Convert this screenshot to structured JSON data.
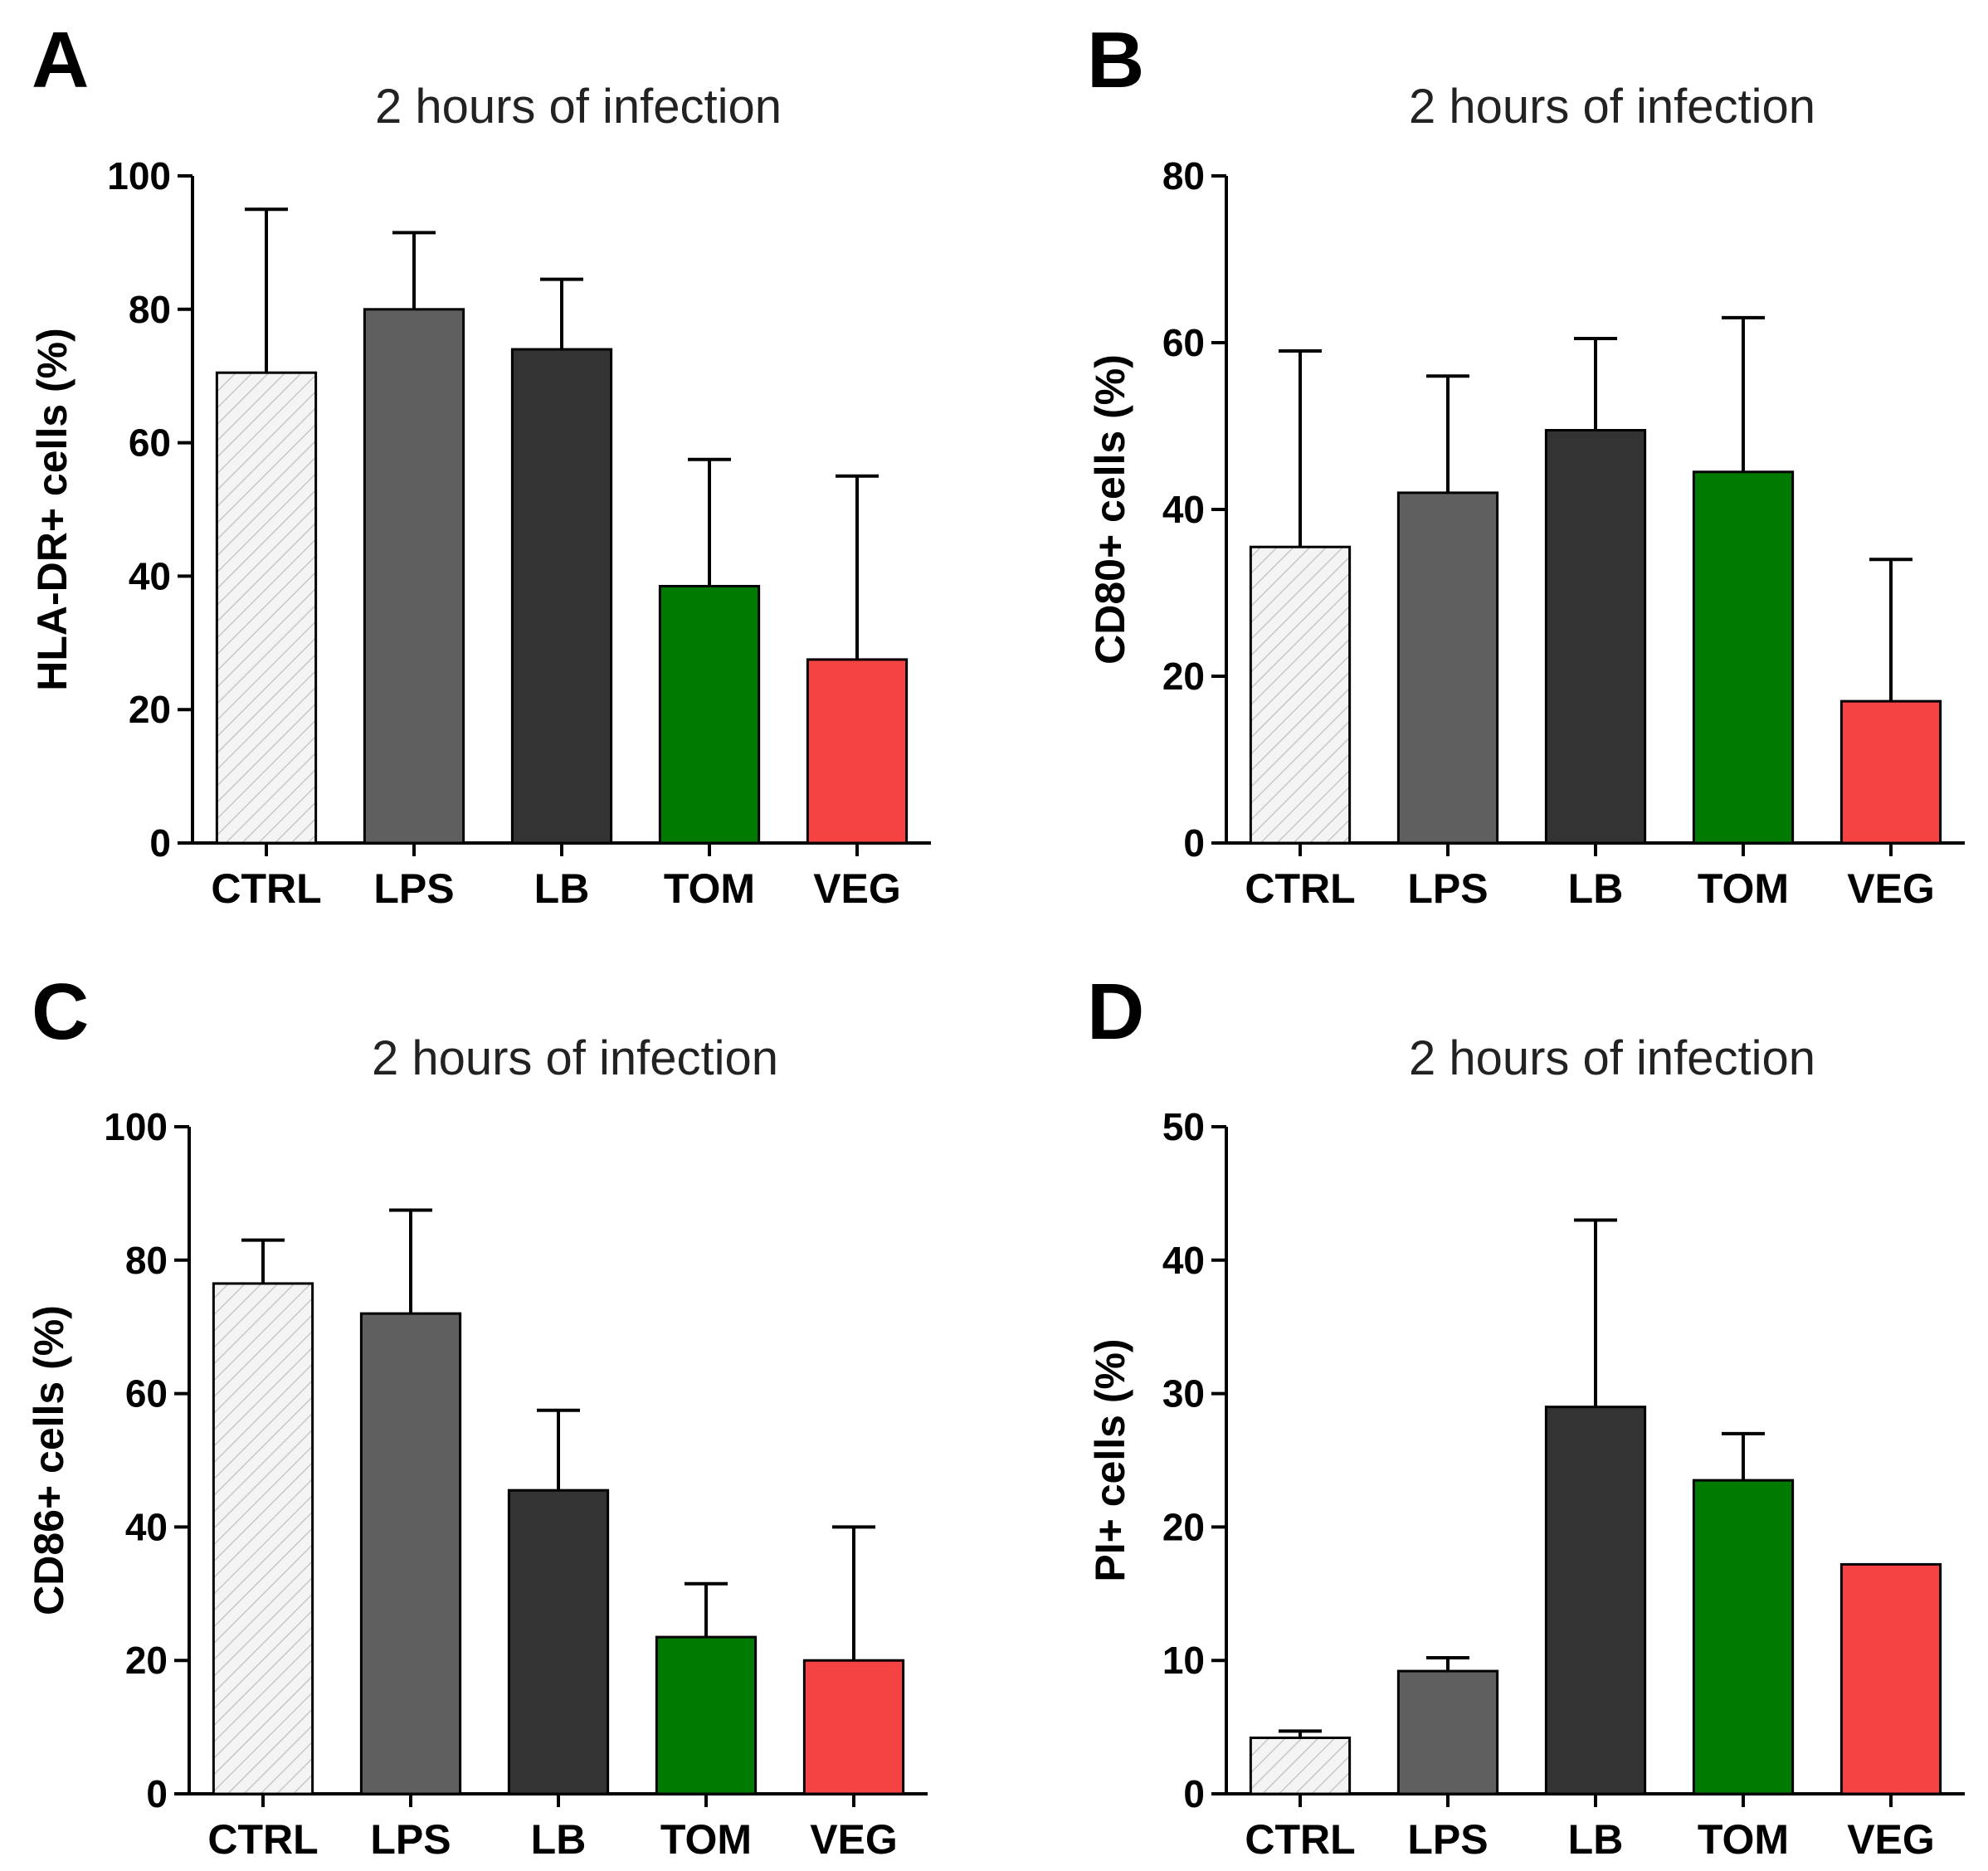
{
  "figure": {
    "colors": {
      "CTRL": "#f4f4f4",
      "LPS": "#5f5f5f",
      "LB": "#333333",
      "TOM": "#007a00",
      "VEG": "#f54242",
      "hatch": "#c8c8c8",
      "axis": "#000000"
    }
  },
  "chart_data": [
    {
      "panel": "A",
      "type": "bar",
      "title": "2 hours of infection",
      "xlabel": "",
      "ylabel": "HLA-DR+ cells (%)",
      "ylim": [
        0,
        100
      ],
      "yticks": [
        0,
        20,
        40,
        60,
        80,
        100
      ],
      "categories": [
        "CTRL",
        "LPS",
        "LB",
        "TOM",
        "VEG"
      ],
      "values": [
        70.5,
        80,
        74,
        38.5,
        27.5
      ],
      "errors": [
        24.5,
        11.5,
        10.5,
        19,
        27.5
      ]
    },
    {
      "panel": "B",
      "type": "bar",
      "title": "2 hours of infection",
      "xlabel": "",
      "ylabel": "CD80+ cells (%)",
      "ylim": [
        0,
        80
      ],
      "yticks": [
        0,
        20,
        40,
        60,
        80
      ],
      "categories": [
        "CTRL",
        "LPS",
        "LB",
        "TOM",
        "VEG"
      ],
      "values": [
        35.5,
        42,
        49.5,
        44.5,
        17
      ],
      "errors": [
        23.5,
        14,
        11,
        18.5,
        17
      ]
    },
    {
      "panel": "C",
      "type": "bar",
      "title": "2 hours of infection",
      "xlabel": "",
      "ylabel": "CD86+ cells (%)",
      "ylim": [
        0,
        100
      ],
      "yticks": [
        0,
        20,
        40,
        60,
        80,
        100
      ],
      "categories": [
        "CTRL",
        "LPS",
        "LB",
        "TOM",
        "VEG"
      ],
      "values": [
        76.5,
        72,
        45.5,
        23.5,
        20
      ],
      "errors": [
        6.5,
        15.5,
        12,
        8,
        20
      ]
    },
    {
      "panel": "D",
      "type": "bar",
      "title": "2 hours of infection",
      "xlabel": "",
      "ylabel": "PI+ cells (%)",
      "ylim": [
        0,
        50
      ],
      "yticks": [
        0,
        10,
        20,
        30,
        40,
        50
      ],
      "categories": [
        "CTRL",
        "LPS",
        "LB",
        "TOM",
        "VEG"
      ],
      "values": [
        4.2,
        9.2,
        29,
        23.5,
        17.2
      ],
      "errors": [
        0.5,
        1,
        14,
        3.5,
        0
      ]
    }
  ]
}
